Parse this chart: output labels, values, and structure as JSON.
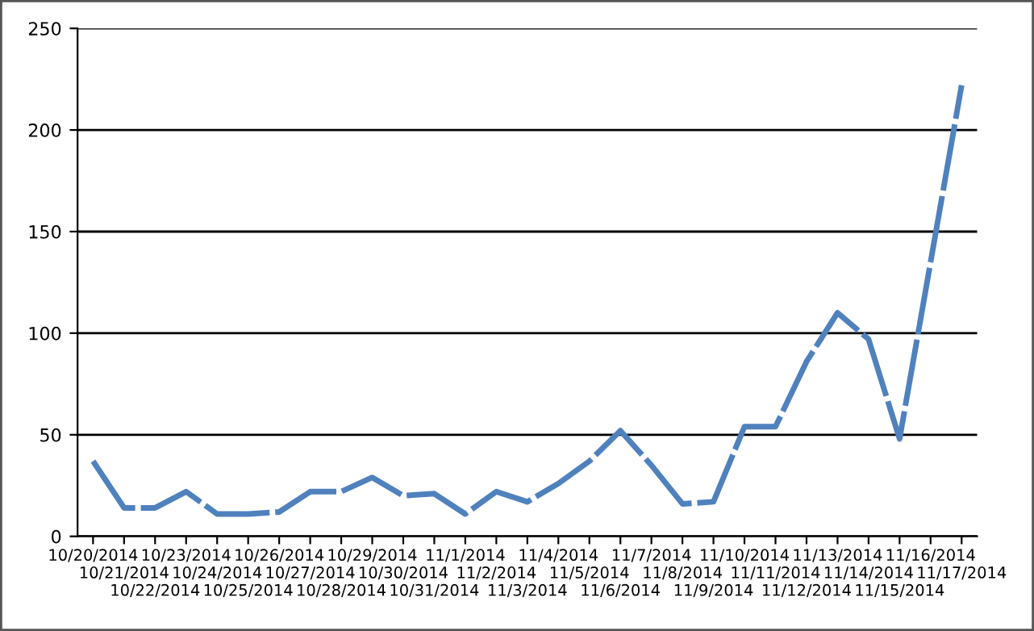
{
  "chart_data": {
    "type": "line",
    "categories": [
      "10/20/2014",
      "10/21/2014",
      "10/22/2014",
      "10/23/2014",
      "10/24/2014",
      "10/25/2014",
      "10/26/2014",
      "10/27/2014",
      "10/28/2014",
      "10/29/2014",
      "10/30/2014",
      "10/31/2014",
      "11/1/2014",
      "11/2/2014",
      "11/3/2014",
      "11/4/2014",
      "11/5/2014",
      "11/6/2014",
      "11/7/2014",
      "11/8/2014",
      "11/9/2014",
      "11/10/2014",
      "11/11/2014",
      "11/12/2014",
      "11/13/2014",
      "11/14/2014",
      "11/15/2014",
      "11/16/2014",
      "11/17/2014"
    ],
    "series": [
      {
        "color": "#4f81bd",
        "values": [
          37,
          14,
          14,
          22,
          11,
          11,
          12,
          22,
          22,
          29,
          20,
          21,
          11,
          22,
          17,
          26,
          37,
          52,
          35,
          16,
          17,
          54,
          54,
          86,
          110,
          97,
          48,
          135,
          222
        ]
      }
    ],
    "ylim": [
      0,
      250
    ],
    "yticks": [
      0,
      50,
      100,
      150,
      200,
      250
    ],
    "grid": "y",
    "legend": false,
    "line_style": "dashed",
    "marker": "none"
  }
}
